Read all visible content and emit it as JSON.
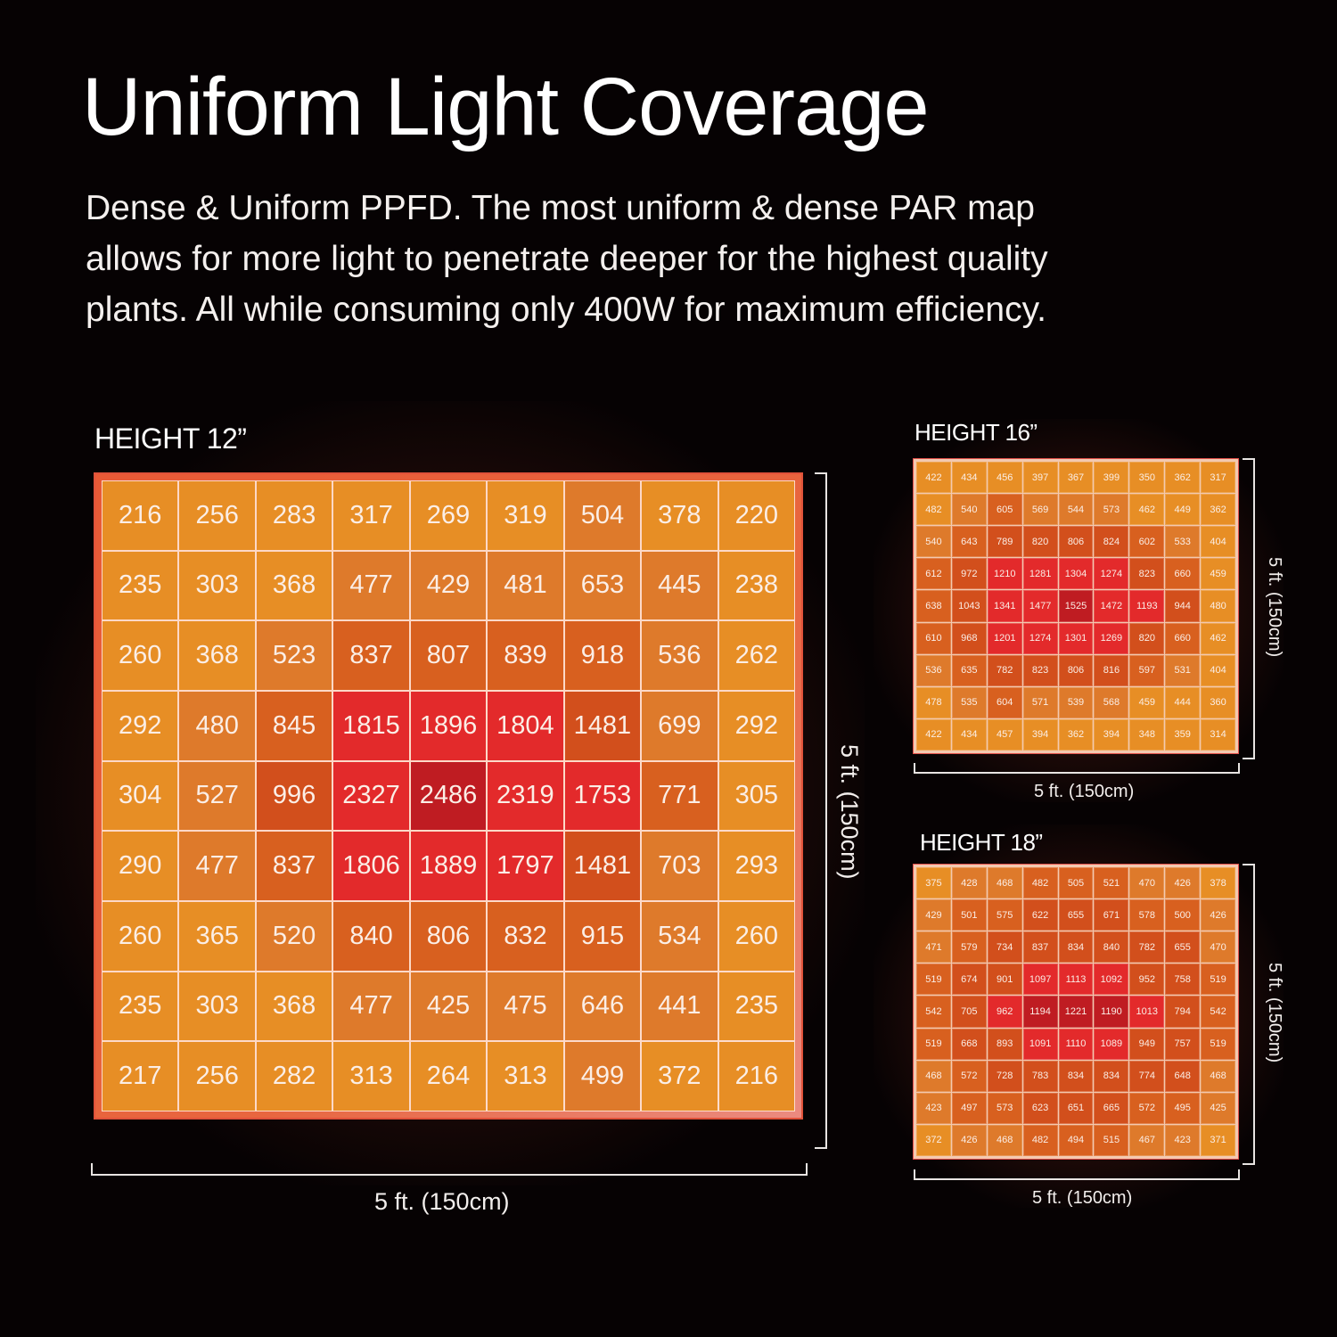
{
  "header": {
    "title": "Uniform Light Coverage",
    "subtitle_lines": [
      "Dense & Uniform PPFD.  The most uniform & dense PAR map",
      "allows for more light to penetrate deeper for the highest quality",
      "plants.  All while consuming only 400W for maximum efficiency."
    ]
  },
  "colors": {
    "background": "#060203",
    "level_1": "#e78e25",
    "level_2": "#de7a2b",
    "level_3": "#d8601f",
    "level_4": "#d24f1c",
    "level_5": "#e32a2b",
    "level_6": "#bf1c22"
  },
  "panels": {
    "h12": {
      "label": "HEIGHT 12”",
      "width_label": "5 ft. (150cm)",
      "height_label": "5 ft. (150cm)"
    },
    "h16": {
      "label": "HEIGHT 16”",
      "width_label": "5 ft. (150cm)",
      "height_label": "5 ft. (150cm)"
    },
    "h18": {
      "label": "HEIGHT 18”",
      "width_label": "5 ft. (150cm)",
      "height_label": "5 ft. (150cm)"
    }
  },
  "chart_data": [
    {
      "type": "heatmap",
      "title": "HEIGHT 12”",
      "xlabel": "5 ft. (150cm)",
      "ylabel": "5 ft. (150cm)",
      "units": "PPFD",
      "rows": 9,
      "cols": 9,
      "values": [
        [
          216,
          256,
          283,
          317,
          269,
          319,
          504,
          378,
          220
        ],
        [
          235,
          303,
          368,
          477,
          429,
          481,
          653,
          445,
          238
        ],
        [
          260,
          368,
          523,
          837,
          807,
          839,
          918,
          536,
          262
        ],
        [
          292,
          480,
          845,
          1815,
          1896,
          1804,
          1481,
          699,
          292
        ],
        [
          304,
          527,
          996,
          2327,
          2486,
          2319,
          1753,
          771,
          305
        ],
        [
          290,
          477,
          837,
          1806,
          1889,
          1797,
          1481,
          703,
          293
        ],
        [
          260,
          365,
          520,
          840,
          806,
          832,
          915,
          534,
          260
        ],
        [
          235,
          303,
          368,
          477,
          425,
          475,
          646,
          441,
          235
        ],
        [
          217,
          256,
          282,
          313,
          264,
          313,
          499,
          372,
          216
        ]
      ]
    },
    {
      "type": "heatmap",
      "title": "HEIGHT 16”",
      "xlabel": "5 ft. (150cm)",
      "ylabel": "5 ft. (150cm)",
      "units": "PPFD",
      "rows": 9,
      "cols": 9,
      "values": [
        [
          422,
          434,
          456,
          397,
          367,
          399,
          350,
          362,
          317
        ],
        [
          482,
          540,
          605,
          569,
          544,
          573,
          462,
          449,
          362
        ],
        [
          540,
          643,
          789,
          820,
          806,
          824,
          602,
          533,
          404
        ],
        [
          612,
          972,
          1210,
          1281,
          1304,
          1274,
          823,
          660,
          459
        ],
        [
          638,
          1043,
          1341,
          1477,
          1525,
          1472,
          1193,
          944,
          480
        ],
        [
          610,
          968,
          1201,
          1274,
          1301,
          1269,
          820,
          660,
          462
        ],
        [
          536,
          635,
          782,
          823,
          806,
          816,
          597,
          531,
          404
        ],
        [
          478,
          535,
          604,
          571,
          539,
          568,
          459,
          444,
          360
        ],
        [
          422,
          434,
          457,
          394,
          362,
          394,
          348,
          359,
          314
        ]
      ]
    },
    {
      "type": "heatmap",
      "title": "HEIGHT 18”",
      "xlabel": "5 ft. (150cm)",
      "ylabel": "5 ft. (150cm)",
      "units": "PPFD",
      "rows": 9,
      "cols": 9,
      "values": [
        [
          375,
          428,
          468,
          482,
          505,
          521,
          470,
          426,
          378
        ],
        [
          429,
          501,
          575,
          622,
          655,
          671,
          578,
          500,
          426
        ],
        [
          471,
          579,
          734,
          837,
          834,
          840,
          782,
          655,
          470
        ],
        [
          519,
          674,
          901,
          1097,
          1113,
          1092,
          952,
          758,
          519
        ],
        [
          542,
          705,
          962,
          1194,
          1221,
          1190,
          1013,
          794,
          542
        ],
        [
          519,
          668,
          893,
          1091,
          1110,
          1089,
          949,
          757,
          519
        ],
        [
          468,
          572,
          728,
          783,
          834,
          834,
          774,
          648,
          468
        ],
        [
          423,
          497,
          573,
          623,
          651,
          665,
          572,
          495,
          425
        ],
        [
          372,
          426,
          468,
          482,
          494,
          515,
          467,
          423,
          371
        ]
      ]
    }
  ]
}
